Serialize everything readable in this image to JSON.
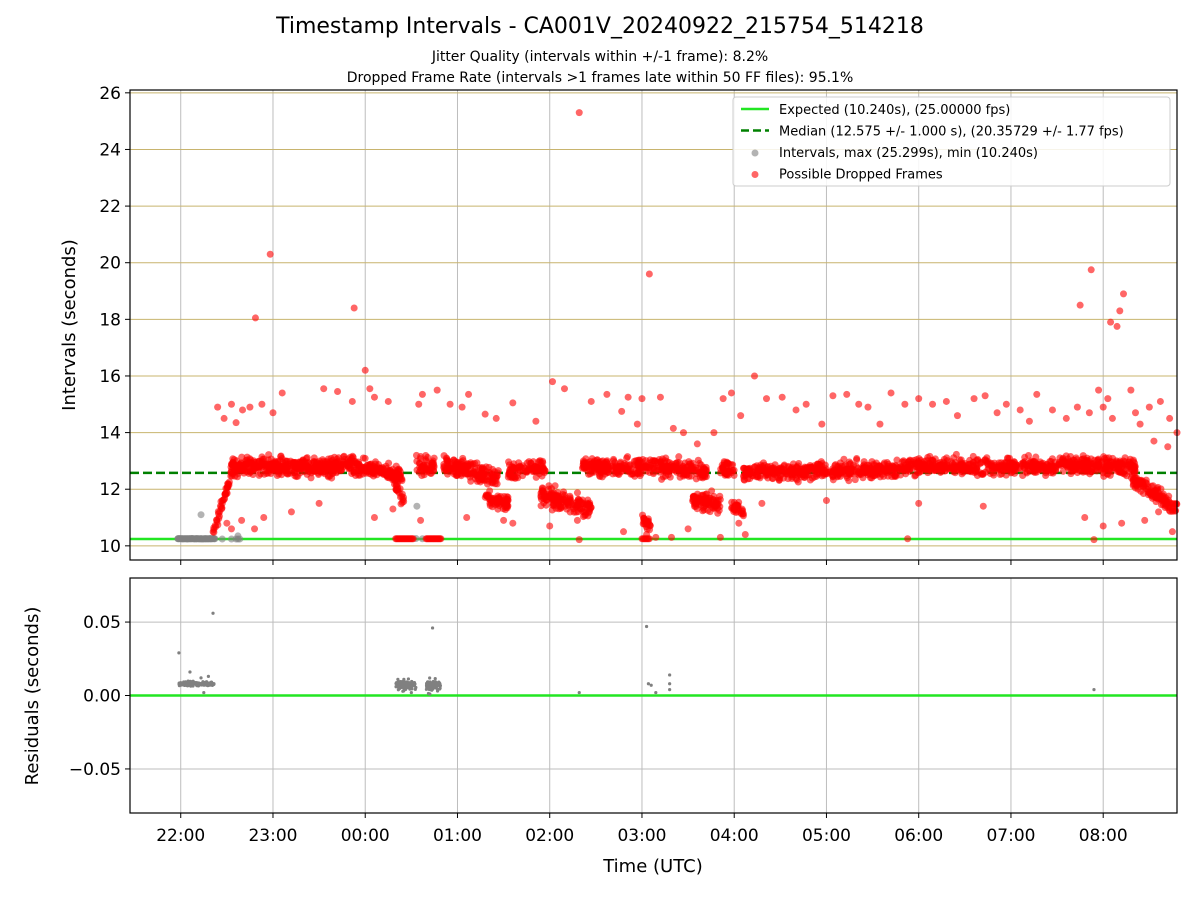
{
  "header": {
    "title": "Timestamp Intervals - CA001V_20240922_215754_514218",
    "subtitle_1": "Jitter Quality (intervals within +/-1 frame): 8.2%",
    "subtitle_2": "Dropped Frame Rate (intervals >1 frames late within 50 FF files): 95.1%"
  },
  "colors": {
    "expected": "#22e622",
    "median": "#008000",
    "intervals": "#808080",
    "dropped": "#ff0000",
    "hgrid_top": "#c8b46e",
    "grid": "#bdbdbd"
  },
  "chart_data": [
    {
      "type": "scatter",
      "panel": "top",
      "title": "Timestamp Intervals - CA001V_20240922_215754_514218",
      "ylabel": "Intervals (seconds)",
      "xlabel": "",
      "ylim": [
        9.5,
        26.1
      ],
      "xlim_hours": [
        21.45,
        32.8
      ],
      "yticks": [
        "10",
        "12",
        "14",
        "16",
        "18",
        "20",
        "22",
        "24",
        "26"
      ],
      "grid": "on",
      "legend_position": "upper right",
      "legend": [
        {
          "label": "Expected (10.240s), (25.00000 fps)",
          "style": "solid-line",
          "color": "#22e622"
        },
        {
          "label": "Median (12.575 +/- 1.000 s), (20.35729 +/- 1.77 fps)",
          "style": "dashed-line",
          "color": "#008000"
        },
        {
          "label": "Intervals, max (25.299s), min (10.240s)",
          "style": "dot",
          "color": "#808080"
        },
        {
          "label": "Possible Dropped Frames",
          "style": "dot",
          "color": "#ff0000"
        }
      ],
      "expected_interval": 10.24,
      "median_interval": 12.575,
      "max_interval": 25.299,
      "min_interval": 10.24,
      "gray_points": [
        [
          21.97,
          10.25
        ],
        [
          22.02,
          10.25
        ],
        [
          22.07,
          10.25
        ],
        [
          22.12,
          10.26
        ],
        [
          22.17,
          10.25
        ],
        [
          22.22,
          10.25
        ],
        [
          22.27,
          10.25
        ],
        [
          22.32,
          10.25
        ],
        [
          22.22,
          11.1
        ],
        [
          22.45,
          10.24
        ],
        [
          22.55,
          10.24
        ],
        [
          22.6,
          10.24
        ],
        [
          22.62,
          10.24
        ],
        [
          22.62,
          10.35
        ],
        [
          22.64,
          10.24
        ],
        [
          24.55,
          10.26
        ],
        [
          24.62,
          10.25
        ],
        [
          24.56,
          11.4
        ]
      ],
      "dropped_points": [
        [
          22.81,
          18.05
        ],
        [
          22.97,
          20.3
        ],
        [
          23.1,
          15.4
        ],
        [
          23.55,
          15.55
        ],
        [
          23.7,
          15.45
        ],
        [
          23.86,
          15.1
        ],
        [
          23.88,
          18.4
        ],
        [
          24.0,
          16.2
        ],
        [
          24.05,
          15.55
        ],
        [
          24.1,
          15.25
        ],
        [
          24.25,
          15.1
        ],
        [
          24.58,
          15.0
        ],
        [
          24.62,
          15.35
        ],
        [
          24.78,
          15.5
        ],
        [
          24.92,
          15.0
        ],
        [
          25.05,
          14.9
        ],
        [
          25.12,
          15.35
        ],
        [
          25.3,
          14.65
        ],
        [
          25.42,
          14.5
        ],
        [
          25.6,
          15.05
        ],
        [
          25.85,
          14.4
        ],
        [
          26.03,
          15.8
        ],
        [
          26.16,
          15.55
        ],
        [
          26.32,
          25.3
        ],
        [
          26.45,
          15.1
        ],
        [
          26.62,
          15.35
        ],
        [
          26.78,
          14.75
        ],
        [
          26.85,
          15.25
        ],
        [
          26.95,
          14.3
        ],
        [
          27.0,
          15.2
        ],
        [
          27.08,
          19.6
        ],
        [
          27.2,
          15.25
        ],
        [
          27.34,
          14.15
        ],
        [
          27.45,
          14.0
        ],
        [
          27.6,
          13.6
        ],
        [
          27.78,
          14.0
        ],
        [
          27.88,
          15.2
        ],
        [
          27.97,
          15.4
        ],
        [
          28.07,
          14.6
        ],
        [
          28.22,
          16.0
        ],
        [
          28.35,
          15.2
        ],
        [
          28.52,
          15.25
        ],
        [
          28.67,
          14.8
        ],
        [
          28.78,
          15.0
        ],
        [
          28.95,
          14.3
        ],
        [
          29.07,
          15.3
        ],
        [
          29.22,
          15.35
        ],
        [
          29.35,
          15.0
        ],
        [
          29.45,
          14.9
        ],
        [
          29.58,
          14.3
        ],
        [
          29.7,
          15.4
        ],
        [
          29.85,
          15.0
        ],
        [
          30.0,
          15.2
        ],
        [
          30.15,
          15.0
        ],
        [
          30.3,
          15.1
        ],
        [
          30.42,
          14.6
        ],
        [
          30.6,
          15.2
        ],
        [
          30.72,
          15.3
        ],
        [
          30.85,
          14.7
        ],
        [
          30.95,
          15.0
        ],
        [
          31.1,
          14.8
        ],
        [
          31.2,
          14.4
        ],
        [
          31.28,
          15.35
        ],
        [
          31.45,
          14.8
        ],
        [
          31.6,
          14.5
        ],
        [
          31.72,
          14.9
        ],
        [
          31.75,
          18.5
        ],
        [
          31.85,
          14.7
        ],
        [
          32.08,
          17.9
        ],
        [
          32.15,
          17.75
        ],
        [
          32.22,
          18.9
        ],
        [
          32.35,
          14.7
        ],
        [
          32.5,
          14.9
        ],
        [
          32.62,
          15.1
        ],
        [
          32.72,
          14.5
        ],
        [
          31.87,
          19.75
        ],
        [
          32.18,
          18.3
        ],
        [
          31.95,
          15.5
        ],
        [
          32.0,
          14.9
        ],
        [
          32.05,
          15.2
        ],
        [
          32.1,
          14.5
        ],
        [
          32.3,
          15.5
        ],
        [
          32.4,
          14.3
        ],
        [
          32.55,
          13.7
        ],
        [
          32.7,
          13.5
        ],
        [
          32.8,
          14.0
        ],
        [
          26.32,
          10.22
        ],
        [
          27.32,
          10.3
        ],
        [
          29.88,
          10.25
        ],
        [
          31.9,
          10.22
        ],
        [
          22.4,
          14.9
        ],
        [
          22.47,
          14.5
        ],
        [
          22.55,
          15.0
        ],
        [
          22.6,
          14.35
        ],
        [
          22.67,
          14.8
        ],
        [
          22.75,
          14.9
        ],
        [
          22.88,
          15.0
        ],
        [
          23.0,
          14.7
        ],
        [
          22.45,
          11.6
        ],
        [
          22.5,
          10.8
        ],
        [
          22.55,
          10.6
        ],
        [
          22.66,
          10.9
        ],
        [
          22.8,
          10.6
        ],
        [
          22.9,
          11.0
        ],
        [
          23.2,
          11.2
        ],
        [
          23.5,
          11.5
        ],
        [
          24.1,
          11.0
        ],
        [
          24.3,
          11.3
        ],
        [
          24.6,
          10.9
        ],
        [
          25.1,
          11.0
        ],
        [
          25.5,
          10.9
        ],
        [
          25.6,
          10.8
        ],
        [
          26.0,
          10.7
        ],
        [
          26.3,
          10.9
        ],
        [
          26.8,
          10.5
        ],
        [
          27.05,
          10.4
        ],
        [
          27.15,
          10.3
        ],
        [
          27.5,
          10.6
        ],
        [
          27.85,
          10.3
        ],
        [
          28.05,
          10.8
        ],
        [
          28.12,
          10.4
        ],
        [
          28.3,
          11.5
        ],
        [
          29.0,
          11.6
        ],
        [
          30.0,
          11.5
        ],
        [
          30.7,
          11.4
        ],
        [
          31.8,
          11.0
        ],
        [
          32.0,
          10.7
        ],
        [
          32.2,
          10.8
        ],
        [
          32.45,
          10.9
        ],
        [
          32.6,
          11.2
        ],
        [
          32.75,
          10.5
        ]
      ],
      "dropped_clusters": [
        {
          "x0": 22.35,
          "x1": 22.55,
          "y0": 10.4,
          "y1": 12.6,
          "n": 45,
          "spread": 0.35
        },
        {
          "x0": 22.55,
          "x1": 23.7,
          "y0": 12.8,
          "y1": 12.8,
          "n": 380,
          "spread": 0.55
        },
        {
          "x0": 23.7,
          "x1": 24.4,
          "y0": 12.9,
          "y1": 12.5,
          "n": 190,
          "spread": 0.5
        },
        {
          "x0": 24.3,
          "x1": 24.42,
          "y0": 12.3,
          "y1": 11.6,
          "n": 25,
          "spread": 0.45
        },
        {
          "x0": 24.55,
          "x1": 24.75,
          "y0": 12.8,
          "y1": 12.8,
          "n": 50,
          "spread": 0.55
        },
        {
          "x0": 24.85,
          "x1": 25.45,
          "y0": 12.9,
          "y1": 12.4,
          "n": 170,
          "spread": 0.55
        },
        {
          "x0": 25.3,
          "x1": 25.55,
          "y0": 11.7,
          "y1": 11.5,
          "n": 70,
          "spread": 0.5
        },
        {
          "x0": 25.55,
          "x1": 25.95,
          "y0": 12.6,
          "y1": 12.8,
          "n": 100,
          "spread": 0.55
        },
        {
          "x0": 25.9,
          "x1": 26.45,
          "y0": 11.8,
          "y1": 11.3,
          "n": 160,
          "spread": 0.55
        },
        {
          "x0": 26.35,
          "x1": 27.1,
          "y0": 12.8,
          "y1": 12.8,
          "n": 200,
          "spread": 0.5
        },
        {
          "x0": 27.0,
          "x1": 27.1,
          "y0": 11.0,
          "y1": 10.6,
          "n": 25,
          "spread": 0.4
        },
        {
          "x0": 27.1,
          "x1": 27.7,
          "y0": 12.8,
          "y1": 12.6,
          "n": 150,
          "spread": 0.55
        },
        {
          "x0": 27.55,
          "x1": 27.85,
          "y0": 11.6,
          "y1": 11.5,
          "n": 90,
          "spread": 0.5
        },
        {
          "x0": 27.85,
          "x1": 28.0,
          "y0": 12.8,
          "y1": 12.6,
          "n": 40,
          "spread": 0.5
        },
        {
          "x0": 27.97,
          "x1": 28.1,
          "y0": 11.4,
          "y1": 11.2,
          "n": 30,
          "spread": 0.45
        },
        {
          "x0": 28.1,
          "x1": 29.8,
          "y0": 12.6,
          "y1": 12.7,
          "n": 430,
          "spread": 0.5
        },
        {
          "x0": 29.8,
          "x1": 31.5,
          "y0": 12.8,
          "y1": 12.8,
          "n": 430,
          "spread": 0.5
        },
        {
          "x0": 31.5,
          "x1": 32.35,
          "y0": 12.9,
          "y1": 12.8,
          "n": 240,
          "spread": 0.5
        },
        {
          "x0": 32.3,
          "x1": 32.8,
          "y0": 12.4,
          "y1": 11.3,
          "n": 130,
          "spread": 0.5
        }
      ],
      "dropped_low_bands": [
        {
          "x0": 24.33,
          "x1": 24.52,
          "y": 10.25,
          "n": 20
        },
        {
          "x0": 24.66,
          "x1": 24.82,
          "y": 10.25,
          "n": 18
        },
        {
          "x0": 27.0,
          "x1": 27.08,
          "y": 10.25,
          "n": 8
        }
      ]
    },
    {
      "type": "scatter",
      "panel": "bottom",
      "ylabel": "Residuals (seconds)",
      "xlabel": "Time (UTC)",
      "ylim": [
        -0.08,
        0.08
      ],
      "xlim_hours": [
        21.45,
        32.8
      ],
      "yticks": [
        "−0.05",
        "0.00",
        "0.05"
      ],
      "xticks": [
        "22:00",
        "23:00",
        "00:00",
        "01:00",
        "02:00",
        "03:00",
        "04:00",
        "05:00",
        "06:00",
        "07:00",
        "08:00"
      ],
      "grid": "on",
      "zero_line_color": "#22e622",
      "residual_points": [
        [
          21.98,
          0.029
        ],
        [
          22.1,
          0.016
        ],
        [
          22.35,
          0.056
        ],
        [
          22.3,
          0.013
        ],
        [
          22.22,
          0.012
        ],
        [
          24.73,
          0.046
        ],
        [
          27.05,
          0.047
        ],
        [
          27.3,
          0.014
        ],
        [
          27.3,
          0.008
        ],
        [
          27.3,
          0.004
        ],
        [
          27.07,
          0.008
        ],
        [
          27.1,
          0.007
        ],
        [
          27.15,
          0.002
        ],
        [
          26.32,
          0.002
        ],
        [
          31.9,
          0.004
        ],
        [
          22.25,
          0.002
        ],
        [
          24.7,
          0.001
        ],
        [
          24.5,
          0.002
        ]
      ],
      "residual_clusters": [
        {
          "x0": 21.98,
          "x1": 22.36,
          "y": 0.008,
          "spread": 0.0025,
          "n": 140
        },
        {
          "x0": 24.33,
          "x1": 24.55,
          "y": 0.007,
          "spread": 0.007,
          "n": 90
        },
        {
          "x0": 24.66,
          "x1": 24.82,
          "y": 0.007,
          "spread": 0.007,
          "n": 70
        }
      ]
    }
  ]
}
